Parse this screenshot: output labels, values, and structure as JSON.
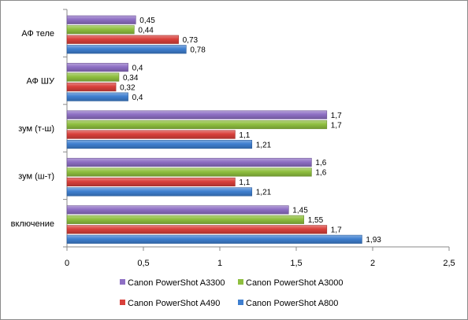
{
  "chart_data": {
    "type": "bar",
    "orientation": "horizontal",
    "categories": [
      "АФ теле",
      "АФ ШУ",
      "зум (т-ш)",
      "зум (ш-т)",
      "включение"
    ],
    "series": [
      {
        "name": "Canon PowerShot A3300",
        "color": "#8e6fc4",
        "values": [
          0.45,
          0.4,
          1.7,
          1.6,
          1.45
        ],
        "labels": [
          "0,45",
          "0,4",
          "1,7",
          "1,6",
          "1,45"
        ]
      },
      {
        "name": "Canon PowerShot A3000",
        "color": "#8fbf3f",
        "values": [
          0.44,
          0.34,
          1.7,
          1.6,
          1.55
        ],
        "labels": [
          "0,44",
          "0,34",
          "1,7",
          "1,6",
          "1,55"
        ]
      },
      {
        "name": "Canon PowerShot A490",
        "color": "#d9403b",
        "values": [
          0.73,
          0.32,
          1.1,
          1.1,
          1.7
        ],
        "labels": [
          "0,73",
          "0,32",
          "1,1",
          "1,1",
          "1,7"
        ]
      },
      {
        "name": "Canon PowerShot A800",
        "color": "#3f7fd0",
        "values": [
          0.78,
          0.4,
          1.21,
          1.21,
          1.93
        ],
        "labels": [
          "0,78",
          "0,4",
          "1,21",
          "1,21",
          "1,93"
        ]
      }
    ],
    "xlim": [
      0,
      2.5
    ],
    "xticks": [
      0,
      0.5,
      1,
      1.5,
      2,
      2.5
    ],
    "xtick_labels": [
      "0",
      "0,5",
      "1",
      "1,5",
      "2",
      "2,5"
    ],
    "grid": false,
    "legend_position": "bottom"
  }
}
